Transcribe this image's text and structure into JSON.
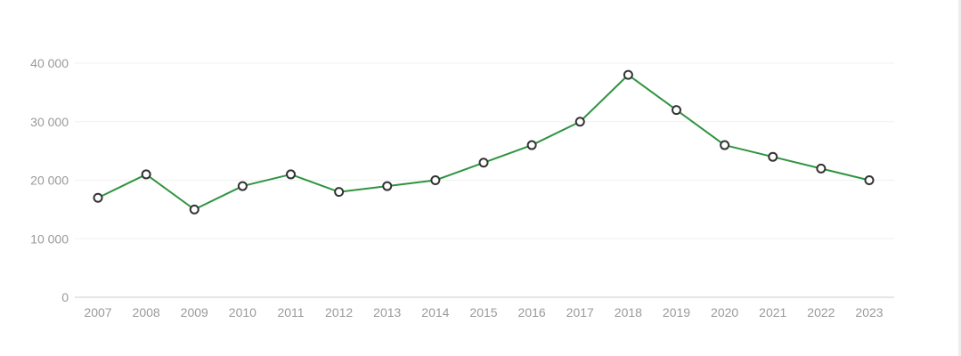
{
  "chart_data": {
    "type": "line",
    "title": "",
    "xlabel": "",
    "ylabel": "",
    "x": [
      "2007",
      "2008",
      "2009",
      "2010",
      "2011",
      "2012",
      "2013",
      "2014",
      "2015",
      "2016",
      "2017",
      "2018",
      "2019",
      "2020",
      "2021",
      "2022",
      "2023"
    ],
    "series": [
      {
        "values": [
          17000,
          21000,
          15000,
          19000,
          21000,
          18000,
          19000,
          20000,
          23000,
          26000,
          30000,
          38000,
          32000,
          26000,
          24000,
          22000,
          20000
        ]
      }
    ],
    "ylim": [
      0,
      40000
    ],
    "yticks": [
      0,
      10000,
      20000,
      30000,
      40000
    ],
    "ytick_labels": [
      "0",
      "10 000",
      "20 000",
      "30 000",
      "40 000"
    ],
    "grid": true,
    "legend": "none",
    "colors": {
      "line": "#2e9440",
      "marker_stroke": "#333333",
      "marker_fill": "#ffffff",
      "grid": "#f0f0f0",
      "axis": "#cccccc",
      "tick_text": "#9a9a9a"
    }
  }
}
